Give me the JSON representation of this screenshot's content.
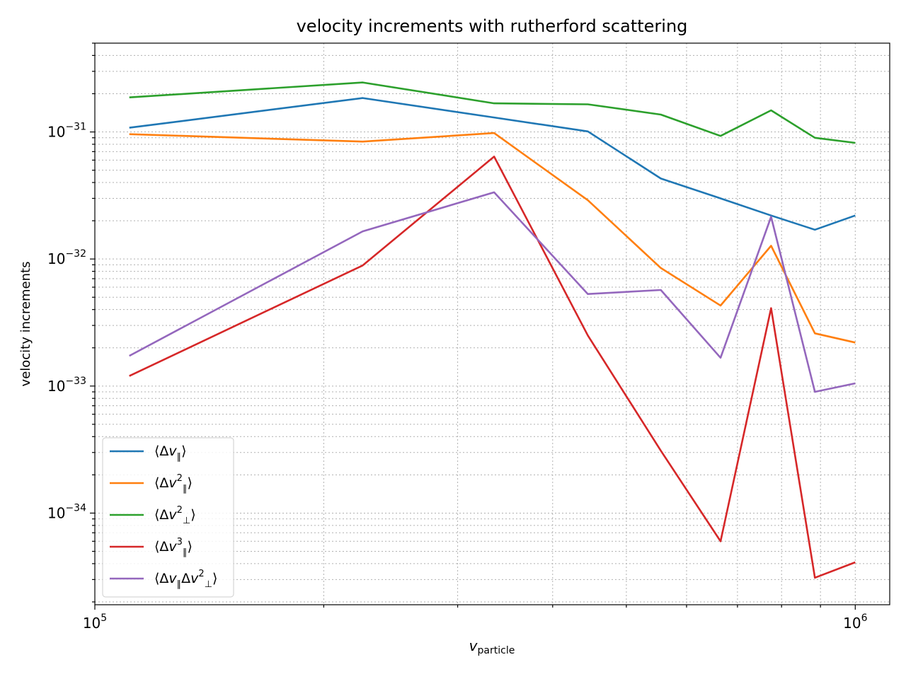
{
  "chart_data": {
    "type": "line",
    "title": "velocity increments with rutherford scattering",
    "xlabel": "v",
    "xlabel_sub": "particle",
    "ylabel": "velocity increments",
    "xscale": "log",
    "yscale": "log",
    "xlim": [
      100000,
      1110000
    ],
    "ylim": [
      1.9e-35,
      5e-31
    ],
    "grid": true,
    "legend_loc": "lower-left",
    "x_ticks": [
      {
        "value": 100000,
        "mant": "10",
        "exp": "5"
      },
      {
        "value": 1000000,
        "mant": "10",
        "exp": "6"
      }
    ],
    "y_ticks": [
      {
        "value": 1e-31,
        "mant": "10",
        "exp": "−31"
      },
      {
        "value": 1e-32,
        "mant": "10",
        "exp": "−32"
      },
      {
        "value": 1e-33,
        "mant": "10",
        "exp": "−33"
      },
      {
        "value": 1e-34,
        "mant": "10",
        "exp": "−34"
      }
    ],
    "x": [
      111000,
      225000,
      335000,
      445000,
      555000,
      665000,
      775000,
      885000,
      1000000
    ],
    "series": [
      {
        "name": "⟨Δv∥⟩",
        "color": "#1f77b4",
        "values": [
          1.08e-31,
          1.85e-31,
          1.3e-31,
          1.01e-31,
          4.3e-32,
          3e-32,
          2.2e-32,
          1.7e-32,
          2.2e-32
        ],
        "label_parts": [
          {
            "t": "⟨Δ"
          },
          {
            "t": "v",
            "i": true
          },
          {
            "t": "∥",
            "sub": true
          },
          {
            "t": "⟩"
          }
        ]
      },
      {
        "name": "⟨Δv∥²⟩",
        "color": "#ff7f0e",
        "values": [
          9.6e-32,
          8.4e-32,
          9.8e-32,
          2.9e-32,
          8.5e-33,
          4.3e-33,
          1.27e-32,
          2.6e-33,
          2.2e-33
        ],
        "label_parts": [
          {
            "t": "⟨Δ"
          },
          {
            "t": "v",
            "i": true
          },
          {
            "t": "2",
            "sup": true
          },
          {
            "t": "∥",
            "sub": true
          },
          {
            "t": "⟩"
          }
        ]
      },
      {
        "name": "⟨Δv⊥²⟩",
        "color": "#2ca02c",
        "values": [
          1.87e-31,
          2.45e-31,
          1.68e-31,
          1.65e-31,
          1.37e-31,
          9.3e-32,
          1.48e-31,
          9e-32,
          8.2e-32
        ],
        "label_parts": [
          {
            "t": "⟨Δ"
          },
          {
            "t": "v",
            "i": true
          },
          {
            "t": "2",
            "sup": true
          },
          {
            "t": "⊥",
            "sub": true
          },
          {
            "t": "⟩"
          }
        ]
      },
      {
        "name": "⟨Δv∥³⟩",
        "color": "#d62728",
        "values": [
          1.2e-33,
          8.9e-33,
          6.4e-32,
          2.5e-33,
          3.1e-34,
          6e-35,
          4.1e-33,
          3.1e-35,
          4.1e-35
        ],
        "label_parts": [
          {
            "t": "⟨Δ"
          },
          {
            "t": "v",
            "i": true
          },
          {
            "t": "3",
            "sup": true
          },
          {
            "t": "∥",
            "sub": true
          },
          {
            "t": "⟩"
          }
        ]
      },
      {
        "name": "⟨Δv∥Δv⊥²⟩",
        "color": "#9467bd",
        "values": [
          1.73e-33,
          1.65e-32,
          3.35e-32,
          5.3e-33,
          5.7e-33,
          1.67e-33,
          2.15e-32,
          9e-34,
          1.05e-33
        ],
        "label_parts": [
          {
            "t": "⟨Δ"
          },
          {
            "t": "v",
            "i": true
          },
          {
            "t": "∥",
            "sub": true
          },
          {
            "t": "Δ"
          },
          {
            "t": "v",
            "i": true
          },
          {
            "t": "2",
            "sup": true
          },
          {
            "t": "⊥",
            "sub": true
          },
          {
            "t": "⟩"
          }
        ]
      }
    ]
  }
}
